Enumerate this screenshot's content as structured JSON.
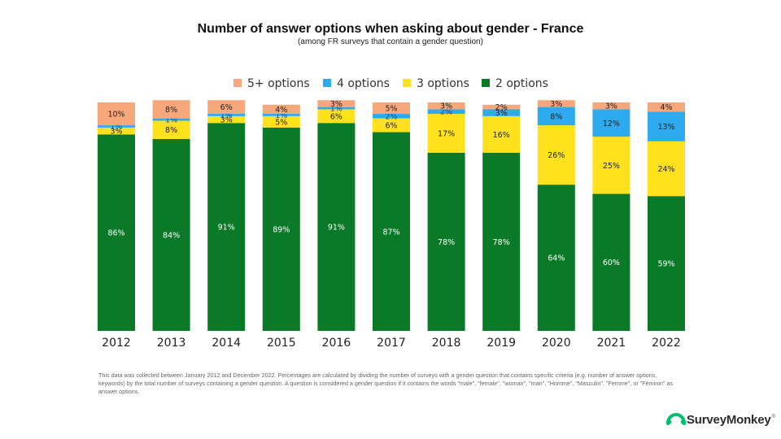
{
  "title": "Number of answer options when asking about gender - France",
  "subtitle": "(among FR surveys that contain a gender question)",
  "footnote": "This data was collected between January 2012 and December 2022. Percentages are calculated by dividing the number of surveys with a gender question that contains specific criteria (e.g. number of answer options, keywords) by the total number of surveys containing a gender question. A question is considered a gender question if it contains the words \"male\", \"female\", \"woman\", \"man\", \"Homme\", \"Masculin\", \"Femme\", or \"Féminin\" as answer options.",
  "logo": {
    "text": "SurveyMonkey",
    "mark": "®",
    "icon": "surveymonkey-logo-icon",
    "color": "#00bf6f"
  },
  "chart_data": {
    "type": "bar",
    "stacked": true,
    "title": "Number of answer options when asking about gender - France",
    "subtitle": "(among FR surveys that contain a gender question)",
    "legend_position": "top",
    "grid": false,
    "categories": [
      "2012",
      "2013",
      "2014",
      "2015",
      "2016",
      "2017",
      "2018",
      "2019",
      "2020",
      "2021",
      "2022"
    ],
    "series": [
      {
        "name": "2 options",
        "color": "#0a7a28",
        "values": [
          86,
          84,
          91,
          89,
          91,
          87,
          78,
          78,
          64,
          60,
          59
        ]
      },
      {
        "name": "3 options",
        "color": "#ffe11e",
        "values": [
          3,
          8,
          3,
          5,
          6,
          6,
          17,
          16,
          26,
          25,
          24
        ]
      },
      {
        "name": "4 options",
        "color": "#2eaaef",
        "values": [
          1,
          1,
          1,
          1,
          1,
          2,
          2,
          3,
          8,
          12,
          13
        ]
      },
      {
        "name": "5+ options",
        "color": "#f6a77c",
        "values": [
          10,
          8,
          6,
          4,
          3,
          5,
          3,
          2,
          3,
          3,
          4
        ]
      }
    ],
    "legend_order": [
      "5+ options",
      "4 options",
      "3 options",
      "2 options"
    ],
    "value_suffix": "%",
    "ylim": [
      0,
      100
    ]
  }
}
